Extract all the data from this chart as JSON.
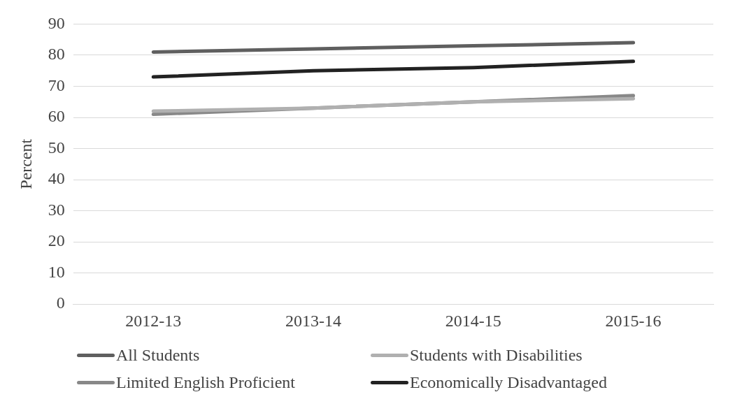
{
  "chart_data": {
    "type": "line",
    "ylabel": "Percent",
    "categories": [
      "2012-13",
      "2013-14",
      "2014-15",
      "2015-16"
    ],
    "series": [
      {
        "name": "All Students",
        "color": "#5f5f5f",
        "values": [
          81,
          82,
          83,
          84
        ]
      },
      {
        "name": "Students with Disabilities",
        "color": "#b0b0b0",
        "values": [
          62,
          63,
          65,
          66
        ]
      },
      {
        "name": "Limited English Proficient",
        "color": "#888888",
        "values": [
          61,
          63,
          65,
          67
        ]
      },
      {
        "name": "Economically Disadvantaged",
        "color": "#222222",
        "values": [
          73,
          75,
          76,
          78
        ]
      }
    ],
    "ylim": [
      0,
      90
    ],
    "yticks": [
      0,
      10,
      20,
      30,
      40,
      50,
      60,
      70,
      80,
      90
    ],
    "grid": "y",
    "legend": "bottom",
    "marker": "none",
    "line_style": "solid"
  }
}
